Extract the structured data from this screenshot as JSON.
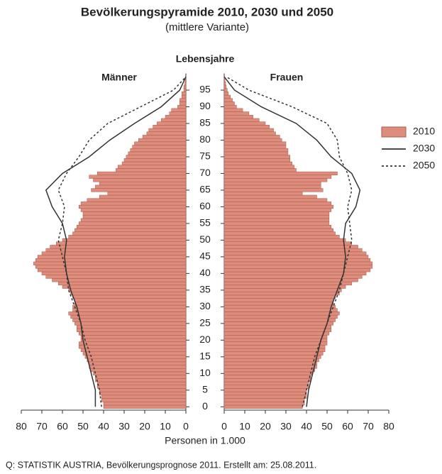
{
  "chart_data": {
    "type": "pyramid",
    "title": "Bevölkerungspyramide  2010, 2030 und 2050",
    "subtitle": "(mittlere Variante)",
    "y_label": "Lebensjahre",
    "left_label": "Männer",
    "right_label": "Frauen",
    "x_label": "Personen in 1.000",
    "source": "Q: STATISTIK AUSTRIA, Bevölkerungsprognose 2011. Erstellt am: 25.08.2011.",
    "xlim": [
      0,
      80
    ],
    "xticks": [
      0,
      10,
      20,
      30,
      40,
      50,
      60,
      70,
      80
    ],
    "ylim": [
      -1,
      100
    ],
    "yticks": [
      0,
      5,
      10,
      15,
      20,
      25,
      30,
      35,
      40,
      45,
      50,
      55,
      60,
      65,
      70,
      75,
      80,
      85,
      90,
      95
    ],
    "series": [
      {
        "name": "2010",
        "color": "#de8d7c",
        "style": "bar",
        "men": [
          40,
          40,
          41,
          41,
          42,
          42,
          43,
          43,
          44,
          44,
          45,
          46,
          47,
          47,
          48,
          49,
          50,
          51,
          52,
          52,
          51,
          51,
          52,
          53,
          53,
          54,
          55,
          56,
          57,
          55,
          55,
          54,
          54,
          55,
          56,
          57,
          60,
          62,
          65,
          68,
          70,
          72,
          73,
          74,
          73,
          72,
          70,
          68,
          66,
          63,
          60,
          57,
          55,
          54,
          53,
          52,
          51,
          50,
          50,
          51,
          52,
          51,
          48,
          42,
          38,
          46,
          44,
          42,
          45,
          47,
          43,
          34,
          33,
          31,
          30,
          29,
          28,
          27,
          26,
          25,
          23,
          21,
          19,
          18,
          16,
          14,
          12,
          10,
          8,
          7,
          4,
          3,
          3,
          2,
          2,
          1,
          1,
          0.5,
          0.3,
          0.2
        ],
        "women": [
          38,
          39,
          39,
          40,
          40,
          40,
          41,
          41,
          42,
          42,
          43,
          44,
          45,
          45,
          46,
          47,
          48,
          49,
          49,
          50,
          50,
          50,
          51,
          52,
          52,
          53,
          54,
          55,
          56,
          55,
          54,
          53,
          53,
          54,
          56,
          57,
          59,
          62,
          65,
          67,
          69,
          71,
          72,
          72,
          71,
          70,
          69,
          67,
          65,
          62,
          59,
          56,
          54,
          53,
          52,
          51,
          51,
          51,
          51,
          52,
          53,
          52,
          50,
          45,
          38,
          48,
          47,
          47,
          50,
          52,
          55,
          35,
          34,
          33,
          32,
          32,
          31,
          31,
          30,
          30,
          28,
          27,
          25,
          24,
          22,
          20,
          17,
          14,
          12,
          9,
          6,
          5,
          4,
          3,
          2,
          1.5,
          1,
          0.7,
          0.4,
          0.2
        ]
      },
      {
        "name": "2030",
        "color": "#333333",
        "style": "solid",
        "ages": [
          0,
          5,
          10,
          15,
          20,
          25,
          30,
          35,
          40,
          45,
          50,
          55,
          60,
          65,
          70,
          75,
          80,
          85,
          90,
          95,
          99
        ],
        "men": [
          44,
          44,
          46,
          48,
          50,
          51,
          53,
          56,
          58,
          59,
          58,
          60,
          65,
          68,
          60,
          47,
          37,
          25,
          12,
          3,
          0
        ],
        "women": [
          40,
          41,
          43,
          45,
          47,
          50,
          52,
          55,
          58,
          59,
          58,
          59,
          64,
          66,
          62,
          52,
          45,
          35,
          18,
          5,
          0
        ]
      },
      {
        "name": "2050",
        "color": "#333333",
        "style": "dashed",
        "ages": [
          0,
          5,
          10,
          15,
          20,
          25,
          30,
          35,
          40,
          45,
          50,
          55,
          60,
          65,
          70,
          75,
          80,
          85,
          90,
          95,
          99
        ],
        "men": [
          41,
          42,
          44,
          46,
          49,
          51,
          54,
          57,
          58,
          60,
          62,
          60,
          59,
          62,
          58,
          52,
          47,
          38,
          22,
          6,
          0
        ],
        "women": [
          38,
          40,
          42,
          44,
          47,
          50,
          53,
          56,
          58,
          60,
          62,
          61,
          60,
          62,
          60,
          56,
          55,
          50,
          33,
          12,
          1
        ]
      }
    ]
  }
}
